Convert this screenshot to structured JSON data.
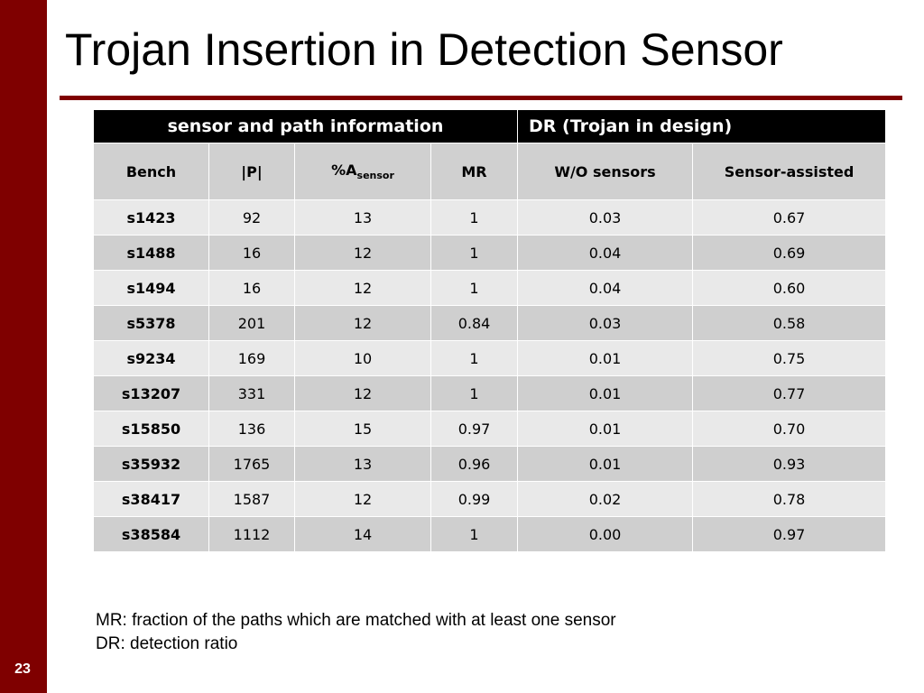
{
  "slide": {
    "title": "Trojan Insertion in Detection Sensor",
    "number": "23",
    "accent_color": "#7f0000"
  },
  "table": {
    "group_headers": {
      "info": "sensor and path information",
      "dr": "DR (Trojan in design)"
    },
    "columns": {
      "bench": "Bench",
      "p": "|P|",
      "a_main": "%A",
      "a_sub": "sensor",
      "mr": "MR",
      "wo": "W/O sensors",
      "sa": "Sensor-assisted"
    },
    "rows": [
      {
        "bench": "s1423",
        "p": "92",
        "a": "13",
        "mr": "1",
        "wo": "0.03",
        "sa": "0.67"
      },
      {
        "bench": "s1488",
        "p": "16",
        "a": "12",
        "mr": "1",
        "wo": "0.04",
        "sa": "0.69"
      },
      {
        "bench": "s1494",
        "p": "16",
        "a": "12",
        "mr": "1",
        "wo": "0.04",
        "sa": "0.60"
      },
      {
        "bench": "s5378",
        "p": "201",
        "a": "12",
        "mr": "0.84",
        "wo": "0.03",
        "sa": "0.58"
      },
      {
        "bench": "s9234",
        "p": "169",
        "a": "10",
        "mr": "1",
        "wo": "0.01",
        "sa": "0.75"
      },
      {
        "bench": "s13207",
        "p": "331",
        "a": "12",
        "mr": "1",
        "wo": "0.01",
        "sa": "0.77"
      },
      {
        "bench": "s15850",
        "p": "136",
        "a": "15",
        "mr": "0.97",
        "wo": "0.01",
        "sa": "0.70"
      },
      {
        "bench": "s35932",
        "p": "1765",
        "a": "13",
        "mr": "0.96",
        "wo": "0.01",
        "sa": "0.93"
      },
      {
        "bench": "s38417",
        "p": "1587",
        "a": "12",
        "mr": "0.99",
        "wo": "0.02",
        "sa": "0.78"
      },
      {
        "bench": "s38584",
        "p": "1112",
        "a": "14",
        "mr": "1",
        "wo": "0.00",
        "sa": "0.97"
      }
    ]
  },
  "footnotes": [
    "MR: fraction of the paths which are matched with at least one sensor",
    "DR: detection ratio"
  ]
}
